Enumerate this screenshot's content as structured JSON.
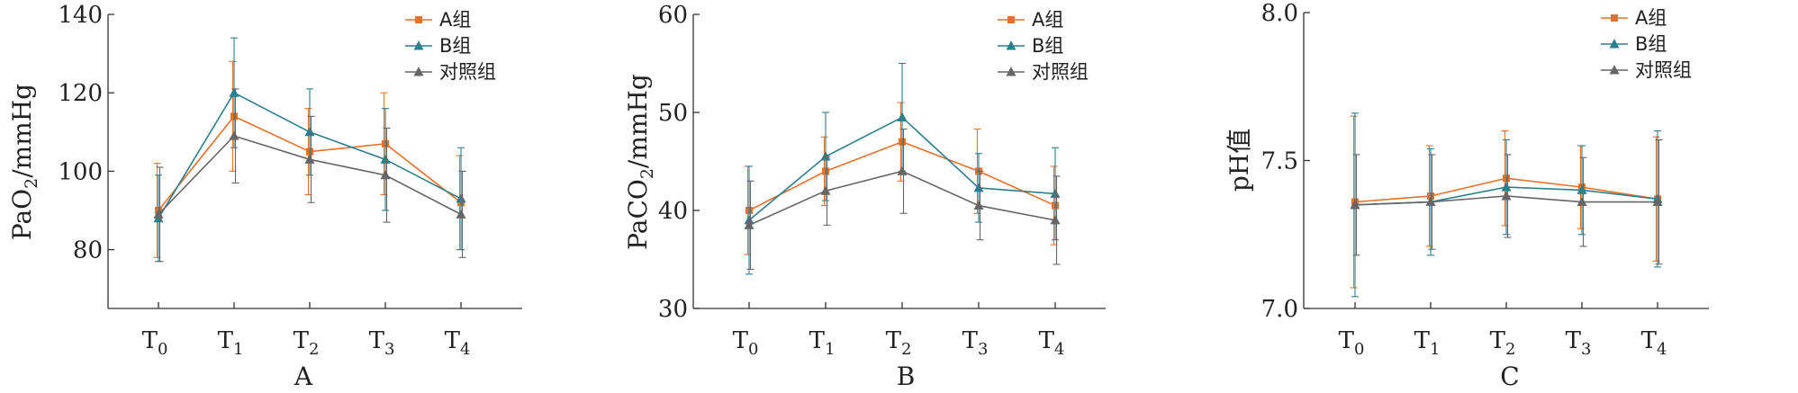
{
  "colors": {
    "groupA": "#e8712a",
    "groupB": "#2d7f8e",
    "control": "#666666",
    "axis": "#333333"
  },
  "legend_labels": [
    "A组",
    "B组",
    "对照组"
  ],
  "chart_data": [
    {
      "type": "line",
      "panel_label": "A",
      "ylabel_main": "PaO",
      "ylabel_sub": "2",
      "ylabel_rest": "/mmHg",
      "ylim": [
        65,
        140
      ],
      "yticks": [
        "80",
        "100",
        "120",
        "140"
      ],
      "ytick_values": [
        80,
        100,
        120,
        140
      ],
      "x": [
        {
          "main": "T",
          "sub": "0"
        },
        {
          "main": "T",
          "sub": "1"
        },
        {
          "main": "T",
          "sub": "2"
        },
        {
          "main": "T",
          "sub": "3"
        },
        {
          "main": "T",
          "sub": "4"
        }
      ],
      "legend": "top-right",
      "series": [
        {
          "name": "A组",
          "color_key": "groupA",
          "marker": "square",
          "values": [
            90,
            114,
            105,
            107,
            92
          ],
          "errors": [
            12,
            14,
            11,
            13,
            12
          ]
        },
        {
          "name": "B组",
          "color_key": "groupB",
          "marker": "triangle",
          "values": [
            88,
            120,
            110,
            103,
            93
          ],
          "errors": [
            11,
            14,
            11,
            13,
            13
          ]
        },
        {
          "name": "对照组",
          "color_key": "control",
          "marker": "triangle",
          "values": [
            89,
            109,
            103,
            99,
            89
          ],
          "errors": [
            12,
            12,
            11,
            12,
            11
          ]
        }
      ]
    },
    {
      "type": "line",
      "panel_label": "B",
      "ylabel_main": "PaCO",
      "ylabel_sub": "2",
      "ylabel_rest": "/mmHg",
      "ylim": [
        30,
        60
      ],
      "yticks": [
        "30",
        "40",
        "50",
        "60"
      ],
      "ytick_values": [
        30,
        40,
        50,
        60
      ],
      "x": [
        {
          "main": "T",
          "sub": "0"
        },
        {
          "main": "T",
          "sub": "1"
        },
        {
          "main": "T",
          "sub": "2"
        },
        {
          "main": "T",
          "sub": "3"
        },
        {
          "main": "T",
          "sub": "4"
        }
      ],
      "legend": "top-right",
      "series": [
        {
          "name": "A组",
          "color_key": "groupA",
          "marker": "square",
          "values": [
            40,
            44,
            47,
            44,
            40.5
          ],
          "errors": [
            4.5,
            3.5,
            4,
            4.3,
            4
          ]
        },
        {
          "name": "B组",
          "color_key": "groupB",
          "marker": "triangle",
          "values": [
            39,
            45.5,
            49.5,
            42.3,
            41.7
          ],
          "errors": [
            5.5,
            4.5,
            5.5,
            3.5,
            4.7
          ]
        },
        {
          "name": "对照组",
          "color_key": "control",
          "marker": "triangle",
          "values": [
            38.5,
            42,
            44,
            40.5,
            39
          ],
          "errors": [
            4.5,
            3.5,
            4.3,
            3.5,
            4.5
          ]
        }
      ]
    },
    {
      "type": "line",
      "panel_label": "C",
      "ylabel_main": "pH值",
      "ylabel_sub": "",
      "ylabel_rest": "",
      "ylim": [
        7.0,
        8.0
      ],
      "yticks": [
        "7.0",
        "7.5",
        "8.0"
      ],
      "ytick_values": [
        7.0,
        7.5,
        8.0
      ],
      "x": [
        {
          "main": "T",
          "sub": "0"
        },
        {
          "main": "T",
          "sub": "1"
        },
        {
          "main": "T",
          "sub": "2"
        },
        {
          "main": "T",
          "sub": "3"
        },
        {
          "main": "T",
          "sub": "4"
        }
      ],
      "legend": "top-right",
      "series": [
        {
          "name": "A组",
          "color_key": "groupA",
          "marker": "square",
          "values": [
            7.36,
            7.38,
            7.44,
            7.41,
            7.37
          ],
          "errors": [
            0.29,
            0.17,
            0.16,
            0.14,
            0.21
          ]
        },
        {
          "name": "B组",
          "color_key": "groupB",
          "marker": "triangle",
          "values": [
            7.35,
            7.36,
            7.41,
            7.4,
            7.37
          ],
          "errors": [
            0.31,
            0.18,
            0.16,
            0.15,
            0.23
          ]
        },
        {
          "name": "对照组",
          "color_key": "control",
          "marker": "triangle",
          "values": [
            7.35,
            7.36,
            7.38,
            7.36,
            7.36
          ],
          "errors": [
            0.17,
            0.16,
            0.14,
            0.15,
            0.21
          ]
        }
      ]
    }
  ]
}
